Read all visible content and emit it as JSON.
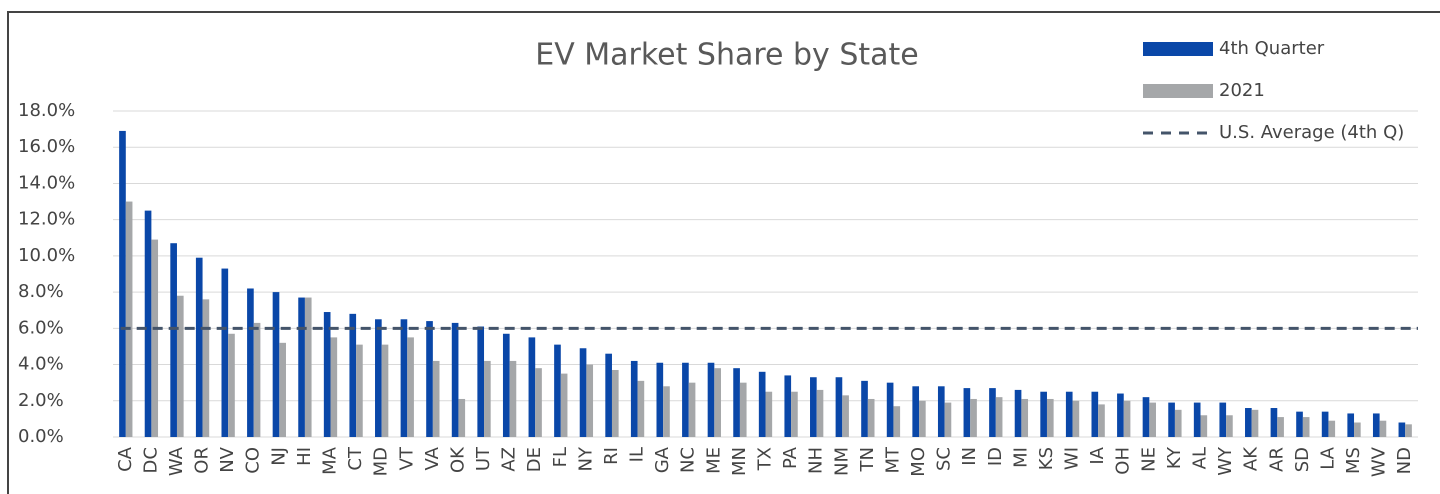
{
  "chart_data": {
    "type": "bar",
    "title": "EV Market Share by State",
    "categories": [
      "CA",
      "DC",
      "WA",
      "OR",
      "NV",
      "CO",
      "NJ",
      "HI",
      "MA",
      "CT",
      "MD",
      "VT",
      "VA",
      "OK",
      "UT",
      "AZ",
      "DE",
      "FL",
      "NY",
      "RI",
      "IL",
      "GA",
      "NC",
      "ME",
      "MN",
      "TX",
      "PA",
      "NH",
      "NM",
      "TN",
      "MT",
      "MO",
      "SC",
      "IN",
      "ID",
      "MI",
      "KS",
      "WI",
      "IA",
      "OH",
      "NE",
      "KY",
      "AL",
      "WY",
      "AK",
      "AR",
      "SD",
      "LA",
      "MS",
      "WV",
      "ND"
    ],
    "series": [
      {
        "name": "4th Quarter",
        "color": "#0a47a8",
        "values": [
          16.9,
          12.5,
          10.7,
          9.9,
          9.3,
          8.2,
          8.0,
          7.7,
          6.9,
          6.8,
          6.5,
          6.5,
          6.4,
          6.3,
          6.1,
          5.7,
          5.5,
          5.1,
          4.9,
          4.6,
          4.2,
          4.1,
          4.1,
          4.1,
          3.8,
          3.6,
          3.4,
          3.3,
          3.3,
          3.1,
          3.0,
          2.8,
          2.8,
          2.7,
          2.7,
          2.6,
          2.5,
          2.5,
          2.5,
          2.4,
          2.2,
          1.9,
          1.9,
          1.9,
          1.6,
          1.6,
          1.4,
          1.4,
          1.3,
          1.3,
          0.8
        ]
      },
      {
        "name": "2021",
        "color": "#a5a7a9",
        "values": [
          13.0,
          10.9,
          7.8,
          7.6,
          5.7,
          6.3,
          5.2,
          7.7,
          5.5,
          5.1,
          5.1,
          5.5,
          4.2,
          2.1,
          4.2,
          4.2,
          3.8,
          3.5,
          4.0,
          3.7,
          3.1,
          2.8,
          3.0,
          3.8,
          3.0,
          2.5,
          2.5,
          2.6,
          2.3,
          2.1,
          1.7,
          2.0,
          1.9,
          2.1,
          2.2,
          2.1,
          2.1,
          2.0,
          1.8,
          2.0,
          1.9,
          1.5,
          1.2,
          1.2,
          1.5,
          1.1,
          1.1,
          0.9,
          0.8,
          0.9,
          0.7
        ]
      }
    ],
    "average": {
      "name": "U.S. Average (4th Q)",
      "value": 6.0,
      "color": "#44546a"
    },
    "ylim": [
      0,
      18
    ],
    "yticks": [
      {
        "value": 0,
        "label": "0.0%"
      },
      {
        "value": 2,
        "label": "2.0%"
      },
      {
        "value": 4,
        "label": "4.0%"
      },
      {
        "value": 6,
        "label": "6.0%"
      },
      {
        "value": 8,
        "label": "8.0%"
      },
      {
        "value": 10,
        "label": "10.0%"
      },
      {
        "value": 12,
        "label": "12.0%"
      },
      {
        "value": 14,
        "label": "14.0%"
      },
      {
        "value": 16,
        "label": "16.0%"
      },
      {
        "value": 18,
        "label": "18.0%"
      }
    ],
    "grid": true
  }
}
